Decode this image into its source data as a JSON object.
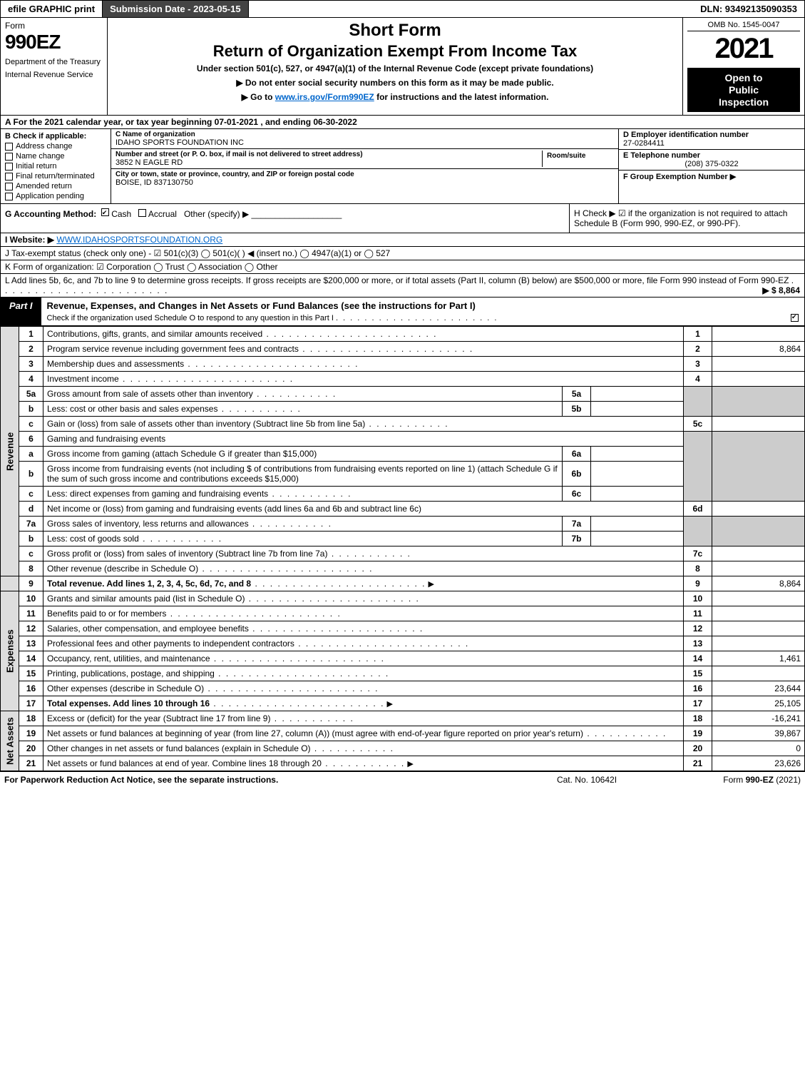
{
  "topbar": {
    "efile": "efile GRAPHIC print",
    "submission": "Submission Date - 2023-05-15",
    "dln": "DLN: 93492135090353"
  },
  "header": {
    "form_label": "Form",
    "form_number": "990EZ",
    "dept1": "Department of the Treasury",
    "dept2": "Internal Revenue Service",
    "title_short": "Short Form",
    "title_main": "Return of Organization Exempt From Income Tax",
    "subtitle": "Under section 501(c), 527, or 4947(a)(1) of the Internal Revenue Code (except private foundations)",
    "instr1": "▶ Do not enter social security numbers on this form as it may be made public.",
    "instr2_pre": "▶ Go to ",
    "instr2_link": "www.irs.gov/Form990EZ",
    "instr2_post": " for instructions and the latest information.",
    "omb": "OMB No. 1545-0047",
    "year": "2021",
    "open1": "Open to",
    "open2": "Public",
    "open3": "Inspection"
  },
  "row_a": "A  For the 2021 calendar year, or tax year beginning 07-01-2021 , and ending 06-30-2022",
  "col_b": {
    "hdr": "B  Check if applicable:",
    "items": [
      "Address change",
      "Name change",
      "Initial return",
      "Final return/terminated",
      "Amended return",
      "Application pending"
    ]
  },
  "col_c": {
    "lbl_name": "C Name of organization",
    "name": "IDAHO SPORTS FOUNDATION INC",
    "lbl_street": "Number and street (or P. O. box, if mail is not delivered to street address)",
    "street": "3852 N EAGLE RD",
    "lbl_room": "Room/suite",
    "room": "",
    "lbl_city": "City or town, state or province, country, and ZIP or foreign postal code",
    "city": "BOISE, ID  837130750"
  },
  "col_de": {
    "lbl_d": "D Employer identification number",
    "ein": "27-0284411",
    "lbl_e": "E Telephone number",
    "phone": "(208) 375-0322",
    "lbl_f": "F Group Exemption Number   ▶",
    "group": ""
  },
  "row_g": {
    "label": "G Accounting Method:",
    "cash": "Cash",
    "accrual": "Accrual",
    "other": "Other (specify) ▶"
  },
  "row_h": "H  Check ▶ ☑ if the organization is not required to attach Schedule B (Form 990, 990-EZ, or 990-PF).",
  "row_i": {
    "label": "I Website: ▶",
    "value": "WWW.IDAHOSPORTSFOUNDATION.ORG"
  },
  "row_j": "J Tax-exempt status (check only one) - ☑ 501(c)(3)  ◯ 501(c)(  ) ◀ (insert no.)  ◯ 4947(a)(1) or  ◯ 527",
  "row_k": "K Form of organization:  ☑ Corporation   ◯ Trust   ◯ Association   ◯ Other",
  "row_l": {
    "text": "L Add lines 5b, 6c, and 7b to line 9 to determine gross receipts. If gross receipts are $200,000 or more, or if total assets (Part II, column (B) below) are $500,000 or more, file Form 990 instead of Form 990-EZ",
    "amount": "▶ $ 8,864"
  },
  "part1": {
    "tab": "Part I",
    "title": "Revenue, Expenses, and Changes in Net Assets or Fund Balances (see the instructions for Part I)",
    "sub": "Check if the organization used Schedule O to respond to any question in this Part I"
  },
  "sections": {
    "revenue": "Revenue",
    "expenses": "Expenses",
    "netassets": "Net Assets"
  },
  "lines": {
    "l1": {
      "n": "1",
      "d": "Contributions, gifts, grants, and similar amounts received",
      "r": "1",
      "v": ""
    },
    "l2": {
      "n": "2",
      "d": "Program service revenue including government fees and contracts",
      "r": "2",
      "v": "8,864"
    },
    "l3": {
      "n": "3",
      "d": "Membership dues and assessments",
      "r": "3",
      "v": ""
    },
    "l4": {
      "n": "4",
      "d": "Investment income",
      "r": "4",
      "v": ""
    },
    "l5a": {
      "n": "5a",
      "d": "Gross amount from sale of assets other than inventory",
      "s": "5a",
      "sv": ""
    },
    "l5b": {
      "n": "b",
      "d": "Less: cost or other basis and sales expenses",
      "s": "5b",
      "sv": ""
    },
    "l5c": {
      "n": "c",
      "d": "Gain or (loss) from sale of assets other than inventory (Subtract line 5b from line 5a)",
      "r": "5c",
      "v": ""
    },
    "l6": {
      "n": "6",
      "d": "Gaming and fundraising events"
    },
    "l6a": {
      "n": "a",
      "d": "Gross income from gaming (attach Schedule G if greater than $15,000)",
      "s": "6a",
      "sv": ""
    },
    "l6b": {
      "n": "b",
      "d": "Gross income from fundraising events (not including $                  of contributions from fundraising events reported on line 1) (attach Schedule G if the sum of such gross income and contributions exceeds $15,000)",
      "s": "6b",
      "sv": ""
    },
    "l6c": {
      "n": "c",
      "d": "Less: direct expenses from gaming and fundraising events",
      "s": "6c",
      "sv": ""
    },
    "l6d": {
      "n": "d",
      "d": "Net income or (loss) from gaming and fundraising events (add lines 6a and 6b and subtract line 6c)",
      "r": "6d",
      "v": ""
    },
    "l7a": {
      "n": "7a",
      "d": "Gross sales of inventory, less returns and allowances",
      "s": "7a",
      "sv": ""
    },
    "l7b": {
      "n": "b",
      "d": "Less: cost of goods sold",
      "s": "7b",
      "sv": ""
    },
    "l7c": {
      "n": "c",
      "d": "Gross profit or (loss) from sales of inventory (Subtract line 7b from line 7a)",
      "r": "7c",
      "v": ""
    },
    "l8": {
      "n": "8",
      "d": "Other revenue (describe in Schedule O)",
      "r": "8",
      "v": ""
    },
    "l9": {
      "n": "9",
      "d": "Total revenue. Add lines 1, 2, 3, 4, 5c, 6d, 7c, and 8",
      "r": "9",
      "v": "8,864"
    },
    "l10": {
      "n": "10",
      "d": "Grants and similar amounts paid (list in Schedule O)",
      "r": "10",
      "v": ""
    },
    "l11": {
      "n": "11",
      "d": "Benefits paid to or for members",
      "r": "11",
      "v": ""
    },
    "l12": {
      "n": "12",
      "d": "Salaries, other compensation, and employee benefits",
      "r": "12",
      "v": ""
    },
    "l13": {
      "n": "13",
      "d": "Professional fees and other payments to independent contractors",
      "r": "13",
      "v": ""
    },
    "l14": {
      "n": "14",
      "d": "Occupancy, rent, utilities, and maintenance",
      "r": "14",
      "v": "1,461"
    },
    "l15": {
      "n": "15",
      "d": "Printing, publications, postage, and shipping",
      "r": "15",
      "v": ""
    },
    "l16": {
      "n": "16",
      "d": "Other expenses (describe in Schedule O)",
      "r": "16",
      "v": "23,644"
    },
    "l17": {
      "n": "17",
      "d": "Total expenses. Add lines 10 through 16",
      "r": "17",
      "v": "25,105"
    },
    "l18": {
      "n": "18",
      "d": "Excess or (deficit) for the year (Subtract line 17 from line 9)",
      "r": "18",
      "v": "-16,241"
    },
    "l19": {
      "n": "19",
      "d": "Net assets or fund balances at beginning of year (from line 27, column (A)) (must agree with end-of-year figure reported on prior year's return)",
      "r": "19",
      "v": "39,867"
    },
    "l20": {
      "n": "20",
      "d": "Other changes in net assets or fund balances (explain in Schedule O)",
      "r": "20",
      "v": "0"
    },
    "l21": {
      "n": "21",
      "d": "Net assets or fund balances at end of year. Combine lines 18 through 20",
      "r": "21",
      "v": "23,626"
    }
  },
  "footer": {
    "left": "For Paperwork Reduction Act Notice, see the separate instructions.",
    "mid": "Cat. No. 10642I",
    "right": "Form 990-EZ (2021)"
  },
  "colors": {
    "black": "#000000",
    "darkgray": "#444444",
    "shade": "#cccccc",
    "lightshade": "#dddddd",
    "link": "#0066cc"
  }
}
